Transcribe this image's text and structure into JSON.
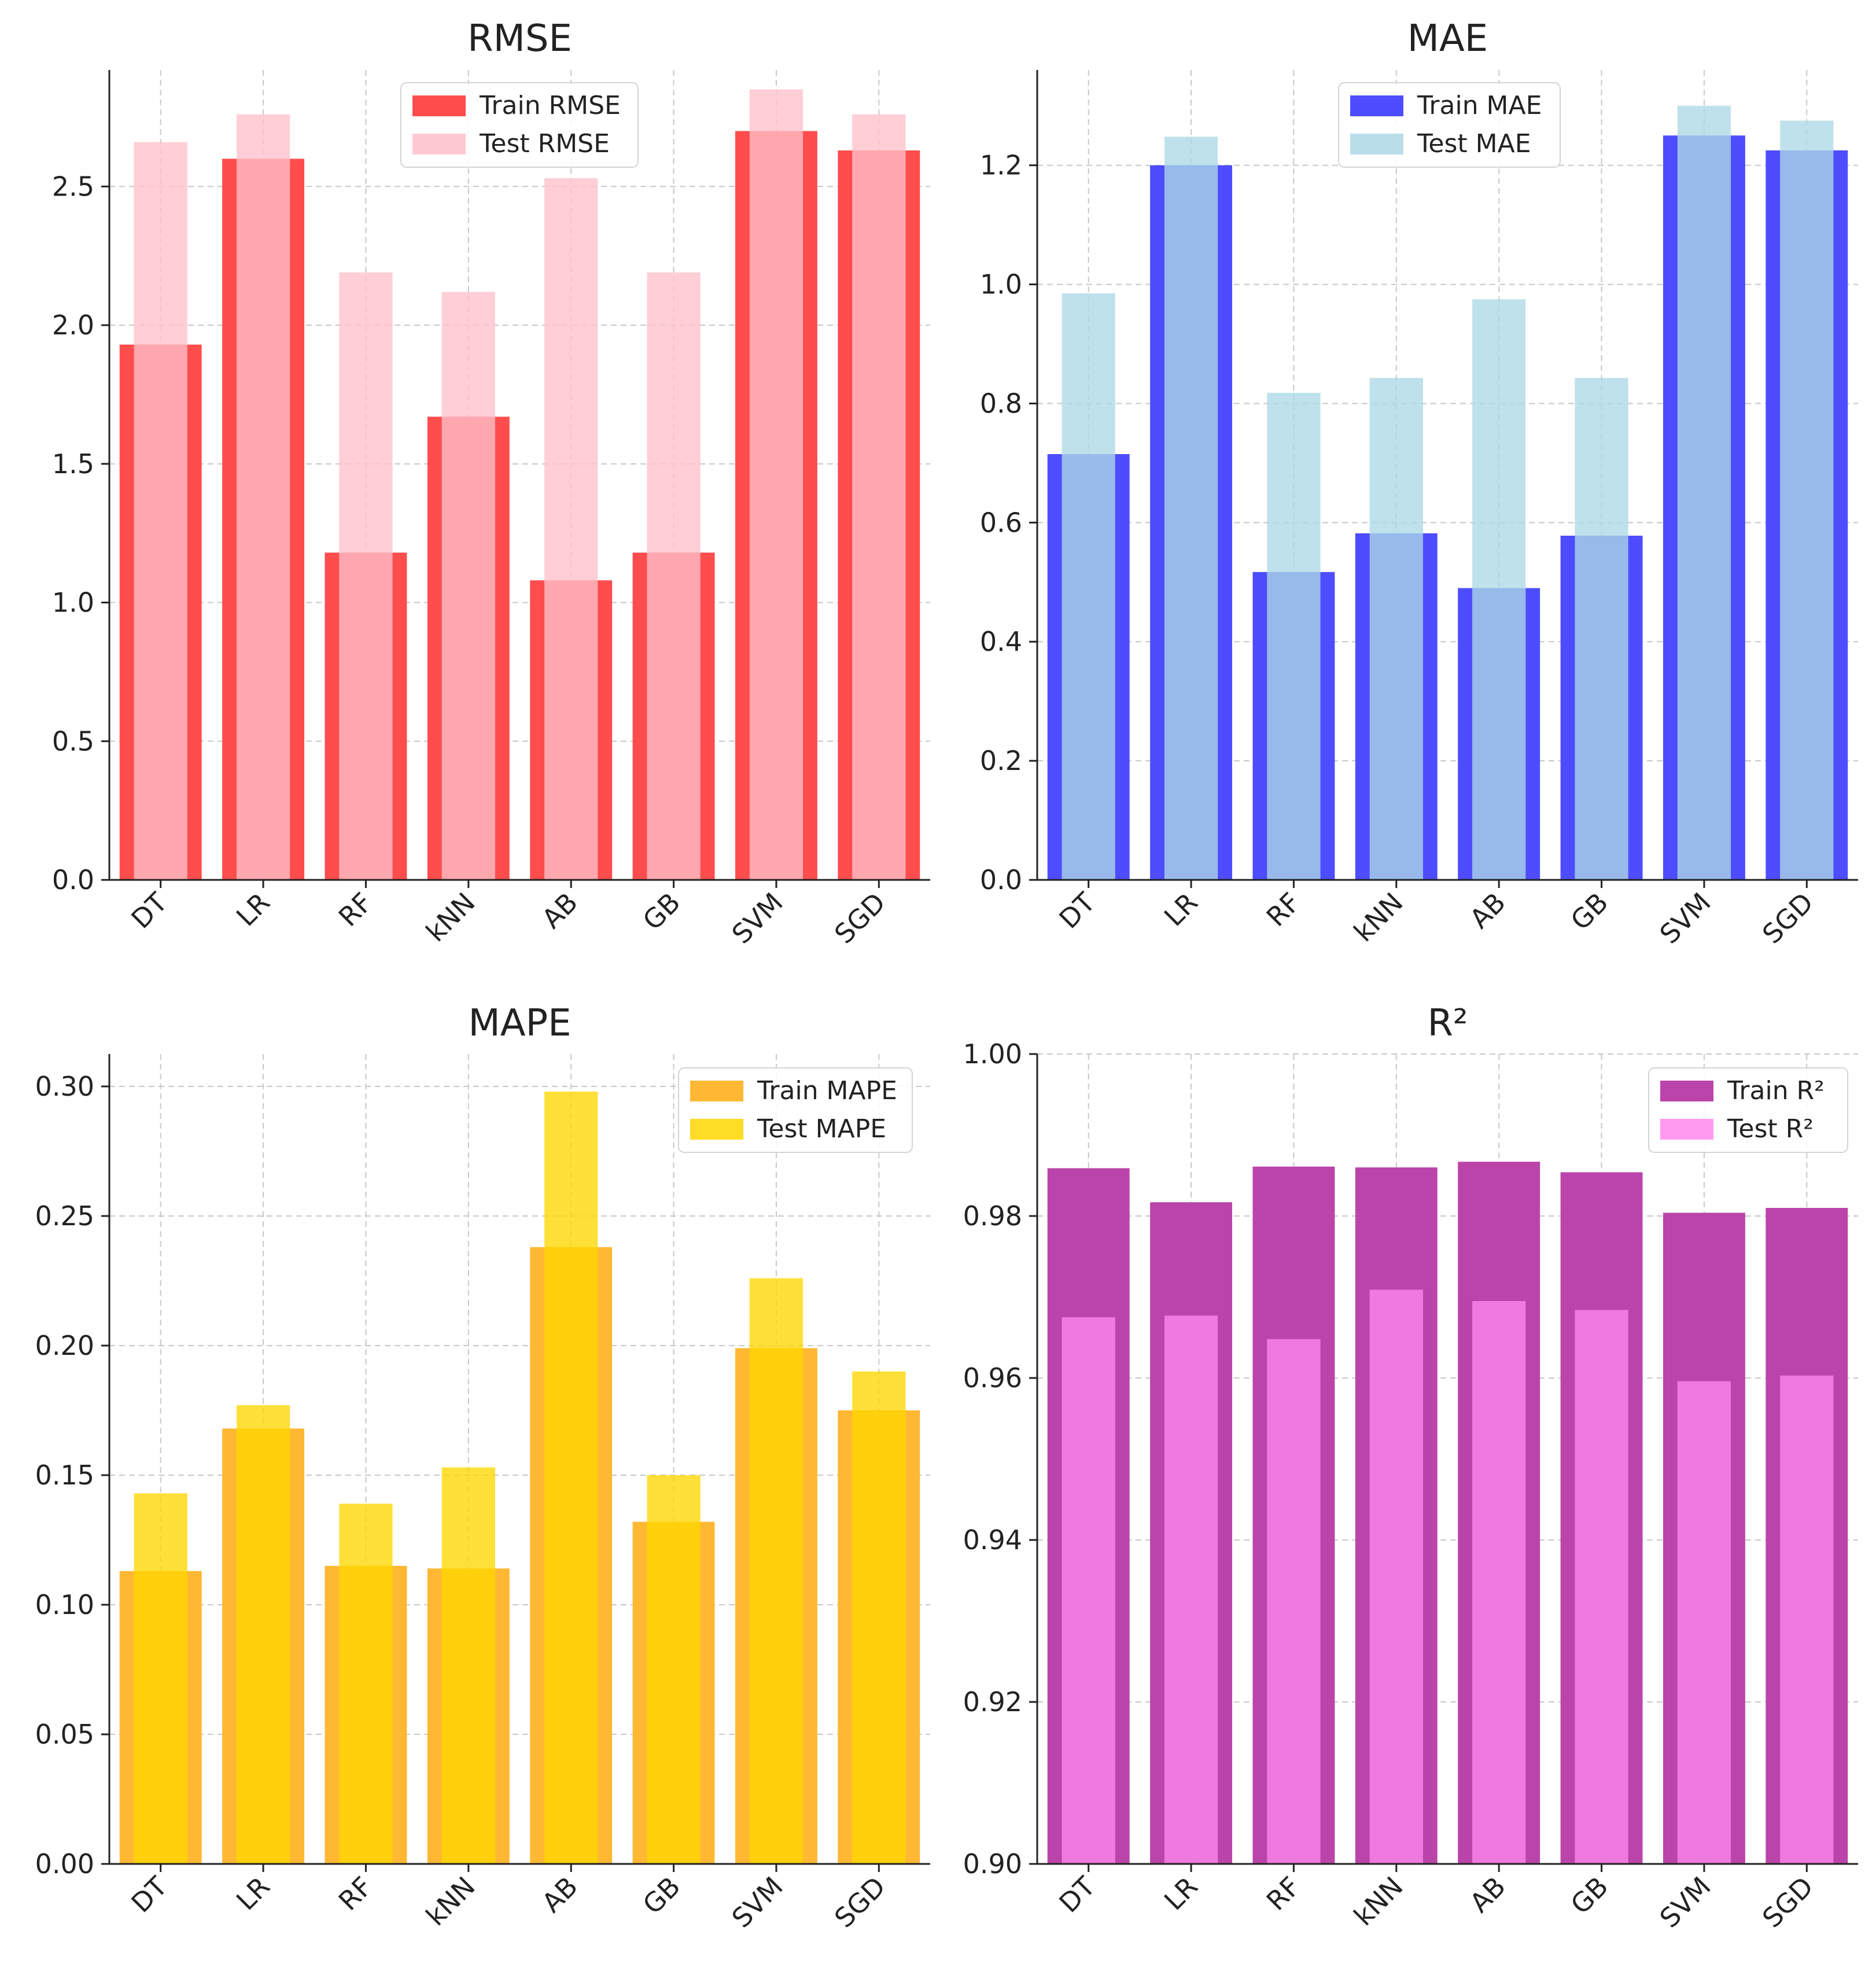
{
  "chart_data": [
    {
      "type": "bar",
      "title": "RMSE",
      "categories": [
        "DT",
        "LR",
        "RF",
        "kNN",
        "AB",
        "GB",
        "SVM",
        "SGD"
      ],
      "ylim": [
        0,
        2.92
      ],
      "yticks": [
        "0.0",
        "0.5",
        "1.0",
        "1.5",
        "2.0",
        "2.5"
      ],
      "grid": true,
      "legend_position": "top-right",
      "series": [
        {
          "name": "Train RMSE",
          "color": "#ff4d4d",
          "values": [
            1.93,
            2.6,
            1.18,
            1.67,
            1.08,
            1.18,
            2.7,
            2.63
          ]
        },
        {
          "name": "Test RMSE",
          "color": "#ffc0cb",
          "values": [
            2.66,
            2.76,
            2.19,
            2.12,
            2.53,
            2.19,
            2.85,
            2.76
          ]
        }
      ]
    },
    {
      "type": "bar",
      "title": "MAE",
      "categories": [
        "DT",
        "LR",
        "RF",
        "kNN",
        "AB",
        "GB",
        "SVM",
        "SGD"
      ],
      "ylim": [
        0,
        1.36
      ],
      "yticks": [
        "0.0",
        "0.2",
        "0.4",
        "0.6",
        "0.8",
        "1.0",
        "1.2"
      ],
      "grid": true,
      "legend_position": "top-right",
      "series": [
        {
          "name": "Train MAE",
          "color": "#4d4dff",
          "values": [
            0.715,
            1.2,
            0.517,
            0.582,
            0.49,
            0.578,
            1.25,
            1.225
          ]
        },
        {
          "name": "Test MAE",
          "color": "#add8e6",
          "values": [
            0.985,
            1.248,
            0.818,
            0.843,
            0.975,
            0.843,
            1.3,
            1.275
          ]
        }
      ]
    },
    {
      "type": "bar",
      "title": "MAPE",
      "categories": [
        "DT",
        "LR",
        "RF",
        "kNN",
        "AB",
        "GB",
        "SVM",
        "SGD"
      ],
      "ylim": [
        0,
        0.3125
      ],
      "yticks": [
        "0.00",
        "0.05",
        "0.10",
        "0.15",
        "0.20",
        "0.25",
        "0.30"
      ],
      "grid": true,
      "legend_position": "top-right",
      "series": [
        {
          "name": "Train MAPE",
          "color": "#ffb833",
          "values": [
            0.113,
            0.168,
            0.115,
            0.114,
            0.238,
            0.132,
            0.199,
            0.175
          ]
        },
        {
          "name": "Test MAPE",
          "color": "#ffd700",
          "values": [
            0.143,
            0.177,
            0.139,
            0.153,
            0.298,
            0.15,
            0.226,
            0.19
          ]
        }
      ]
    },
    {
      "type": "bar",
      "title": "R²",
      "categories": [
        "DT",
        "LR",
        "RF",
        "kNN",
        "AB",
        "GB",
        "SVM",
        "SGD"
      ],
      "ylim": [
        0.9,
        1.0
      ],
      "yticks": [
        "0.90",
        "0.92",
        "0.94",
        "0.96",
        "0.98",
        "1.00"
      ],
      "grid": true,
      "legend_position": "top-right",
      "series": [
        {
          "name": "Train R²",
          "color": "#bb44aa",
          "values": [
            0.9859,
            0.9817,
            0.9861,
            0.986,
            0.9867,
            0.9854,
            0.9804,
            0.981
          ]
        },
        {
          "name": "Test R²",
          "color": "#ff88ee",
          "values": [
            0.9675,
            0.9677,
            0.9648,
            0.9709,
            0.9695,
            0.9684,
            0.9596,
            0.9603
          ]
        }
      ]
    }
  ]
}
